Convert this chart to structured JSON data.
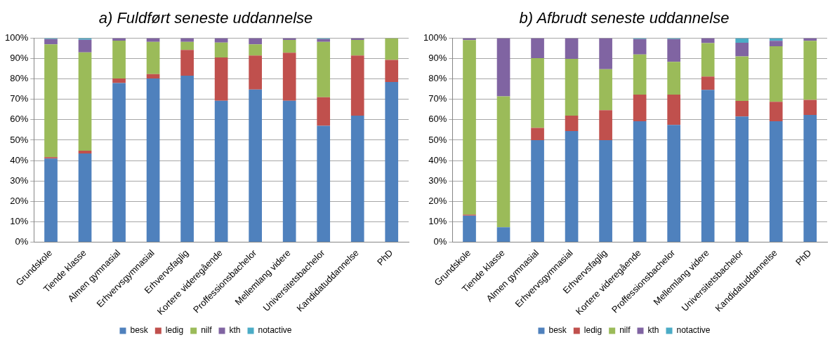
{
  "chart_data": [
    {
      "type": "bar",
      "title": "a) Fuldført seneste uddannelse",
      "stacked": true,
      "legend": "bottom",
      "grid": "y",
      "categories": [
        "Grundskole",
        "Tiende klasse",
        "Almen gymnasial",
        "Erhvervsgymnasial",
        "Erhvervsfaglig",
        "Kortere videregående",
        "Proffessionsbachelor",
        "Mellemlang videre",
        "Universitetsbachelor",
        "Kandidatuddannelse",
        "PhD"
      ],
      "ylim": [
        0,
        100
      ],
      "yticks": [
        {
          "value": 0,
          "label": "0%"
        },
        {
          "value": 10,
          "label": "10%"
        },
        {
          "value": 20,
          "label": "20%"
        },
        {
          "value": 30,
          "label": "30%"
        },
        {
          "value": 40,
          "label": "40%"
        },
        {
          "value": 50,
          "label": "50%"
        },
        {
          "value": 60,
          "label": "60%"
        },
        {
          "value": 70,
          "label": "70%"
        },
        {
          "value": 80,
          "label": "80%"
        },
        {
          "value": 90,
          "label": "90%"
        },
        {
          "value": 100,
          "label": "100%"
        }
      ],
      "series": [
        {
          "name": "besk",
          "color": "#4f81bd",
          "values": [
            41,
            43.5,
            78,
            80.2,
            81.6,
            69.3,
            74.8,
            69.3,
            57,
            62,
            78.5
          ]
        },
        {
          "name": "ledig",
          "color": "#c0504d",
          "values": [
            0.7,
            1.3,
            2.2,
            2.2,
            12.6,
            21.2,
            16.7,
            23.5,
            14,
            29.5,
            10.8
          ]
        },
        {
          "name": "nilf",
          "color": "#9bbb59",
          "values": [
            55.3,
            48.2,
            18.6,
            15.8,
            4,
            7.3,
            5.5,
            6.3,
            27.2,
            7.6,
            10.7
          ]
        },
        {
          "name": "kth",
          "color": "#8064a2",
          "values": [
            2.5,
            6.2,
            1.2,
            1.8,
            1.8,
            2.2,
            3,
            0.9,
            1.3,
            0.9,
            0
          ]
        },
        {
          "name": "notactive",
          "color": "#4bacc6",
          "values": [
            0.5,
            0.8,
            0,
            0,
            0,
            0,
            0,
            0,
            0.5,
            0,
            0
          ]
        }
      ]
    },
    {
      "type": "bar",
      "title": "b) Afbrudt seneste uddannelse",
      "stacked": true,
      "legend": "bottom",
      "grid": "y",
      "categories": [
        "Grundskole",
        "Tiende klasse",
        "Almen gymnasial",
        "Erhvervsgymnasial",
        "Erhvervsfaglig",
        "Kortere videregående",
        "Proffessionsbachelor",
        "Mellemlang videre",
        "Universitetsbachelor",
        "Kandidatuddannelse",
        "PhD"
      ],
      "ylim": [
        0,
        100
      ],
      "yticks": [
        {
          "value": 0,
          "label": "0%"
        },
        {
          "value": 10,
          "label": "10%"
        },
        {
          "value": 20,
          "label": "20%"
        },
        {
          "value": 30,
          "label": "30%"
        },
        {
          "value": 40,
          "label": "40%"
        },
        {
          "value": 50,
          "label": "50%"
        },
        {
          "value": 60,
          "label": "60%"
        },
        {
          "value": 70,
          "label": "70%"
        },
        {
          "value": 80,
          "label": "80%"
        },
        {
          "value": 90,
          "label": "90%"
        },
        {
          "value": 100,
          "label": "100%"
        }
      ],
      "series": [
        {
          "name": "besk",
          "color": "#4f81bd",
          "values": [
            13,
            7.3,
            50,
            54.5,
            50,
            59.3,
            57.5,
            74.6,
            61.6,
            59.3,
            62.4
          ]
        },
        {
          "name": "ledig",
          "color": "#c0504d",
          "values": [
            0.5,
            0,
            6,
            7.5,
            14.7,
            13,
            14.8,
            6.6,
            7.6,
            9.5,
            7.3
          ]
        },
        {
          "name": "nilf",
          "color": "#9bbb59",
          "values": [
            85.5,
            64.2,
            34.2,
            27.8,
            20.1,
            19.7,
            16.1,
            16.4,
            21.8,
            27.2,
            29
          ]
        },
        {
          "name": "kth",
          "color": "#8064a2",
          "values": [
            1,
            28.5,
            9.8,
            10.2,
            15.2,
            7.5,
            11.1,
            2.4,
            6.7,
            2.7,
            1.3
          ]
        },
        {
          "name": "notactive",
          "color": "#4bacc6",
          "values": [
            0,
            0,
            0,
            0,
            0,
            0.5,
            0.5,
            0,
            2.3,
            1.3,
            0
          ]
        }
      ]
    }
  ]
}
